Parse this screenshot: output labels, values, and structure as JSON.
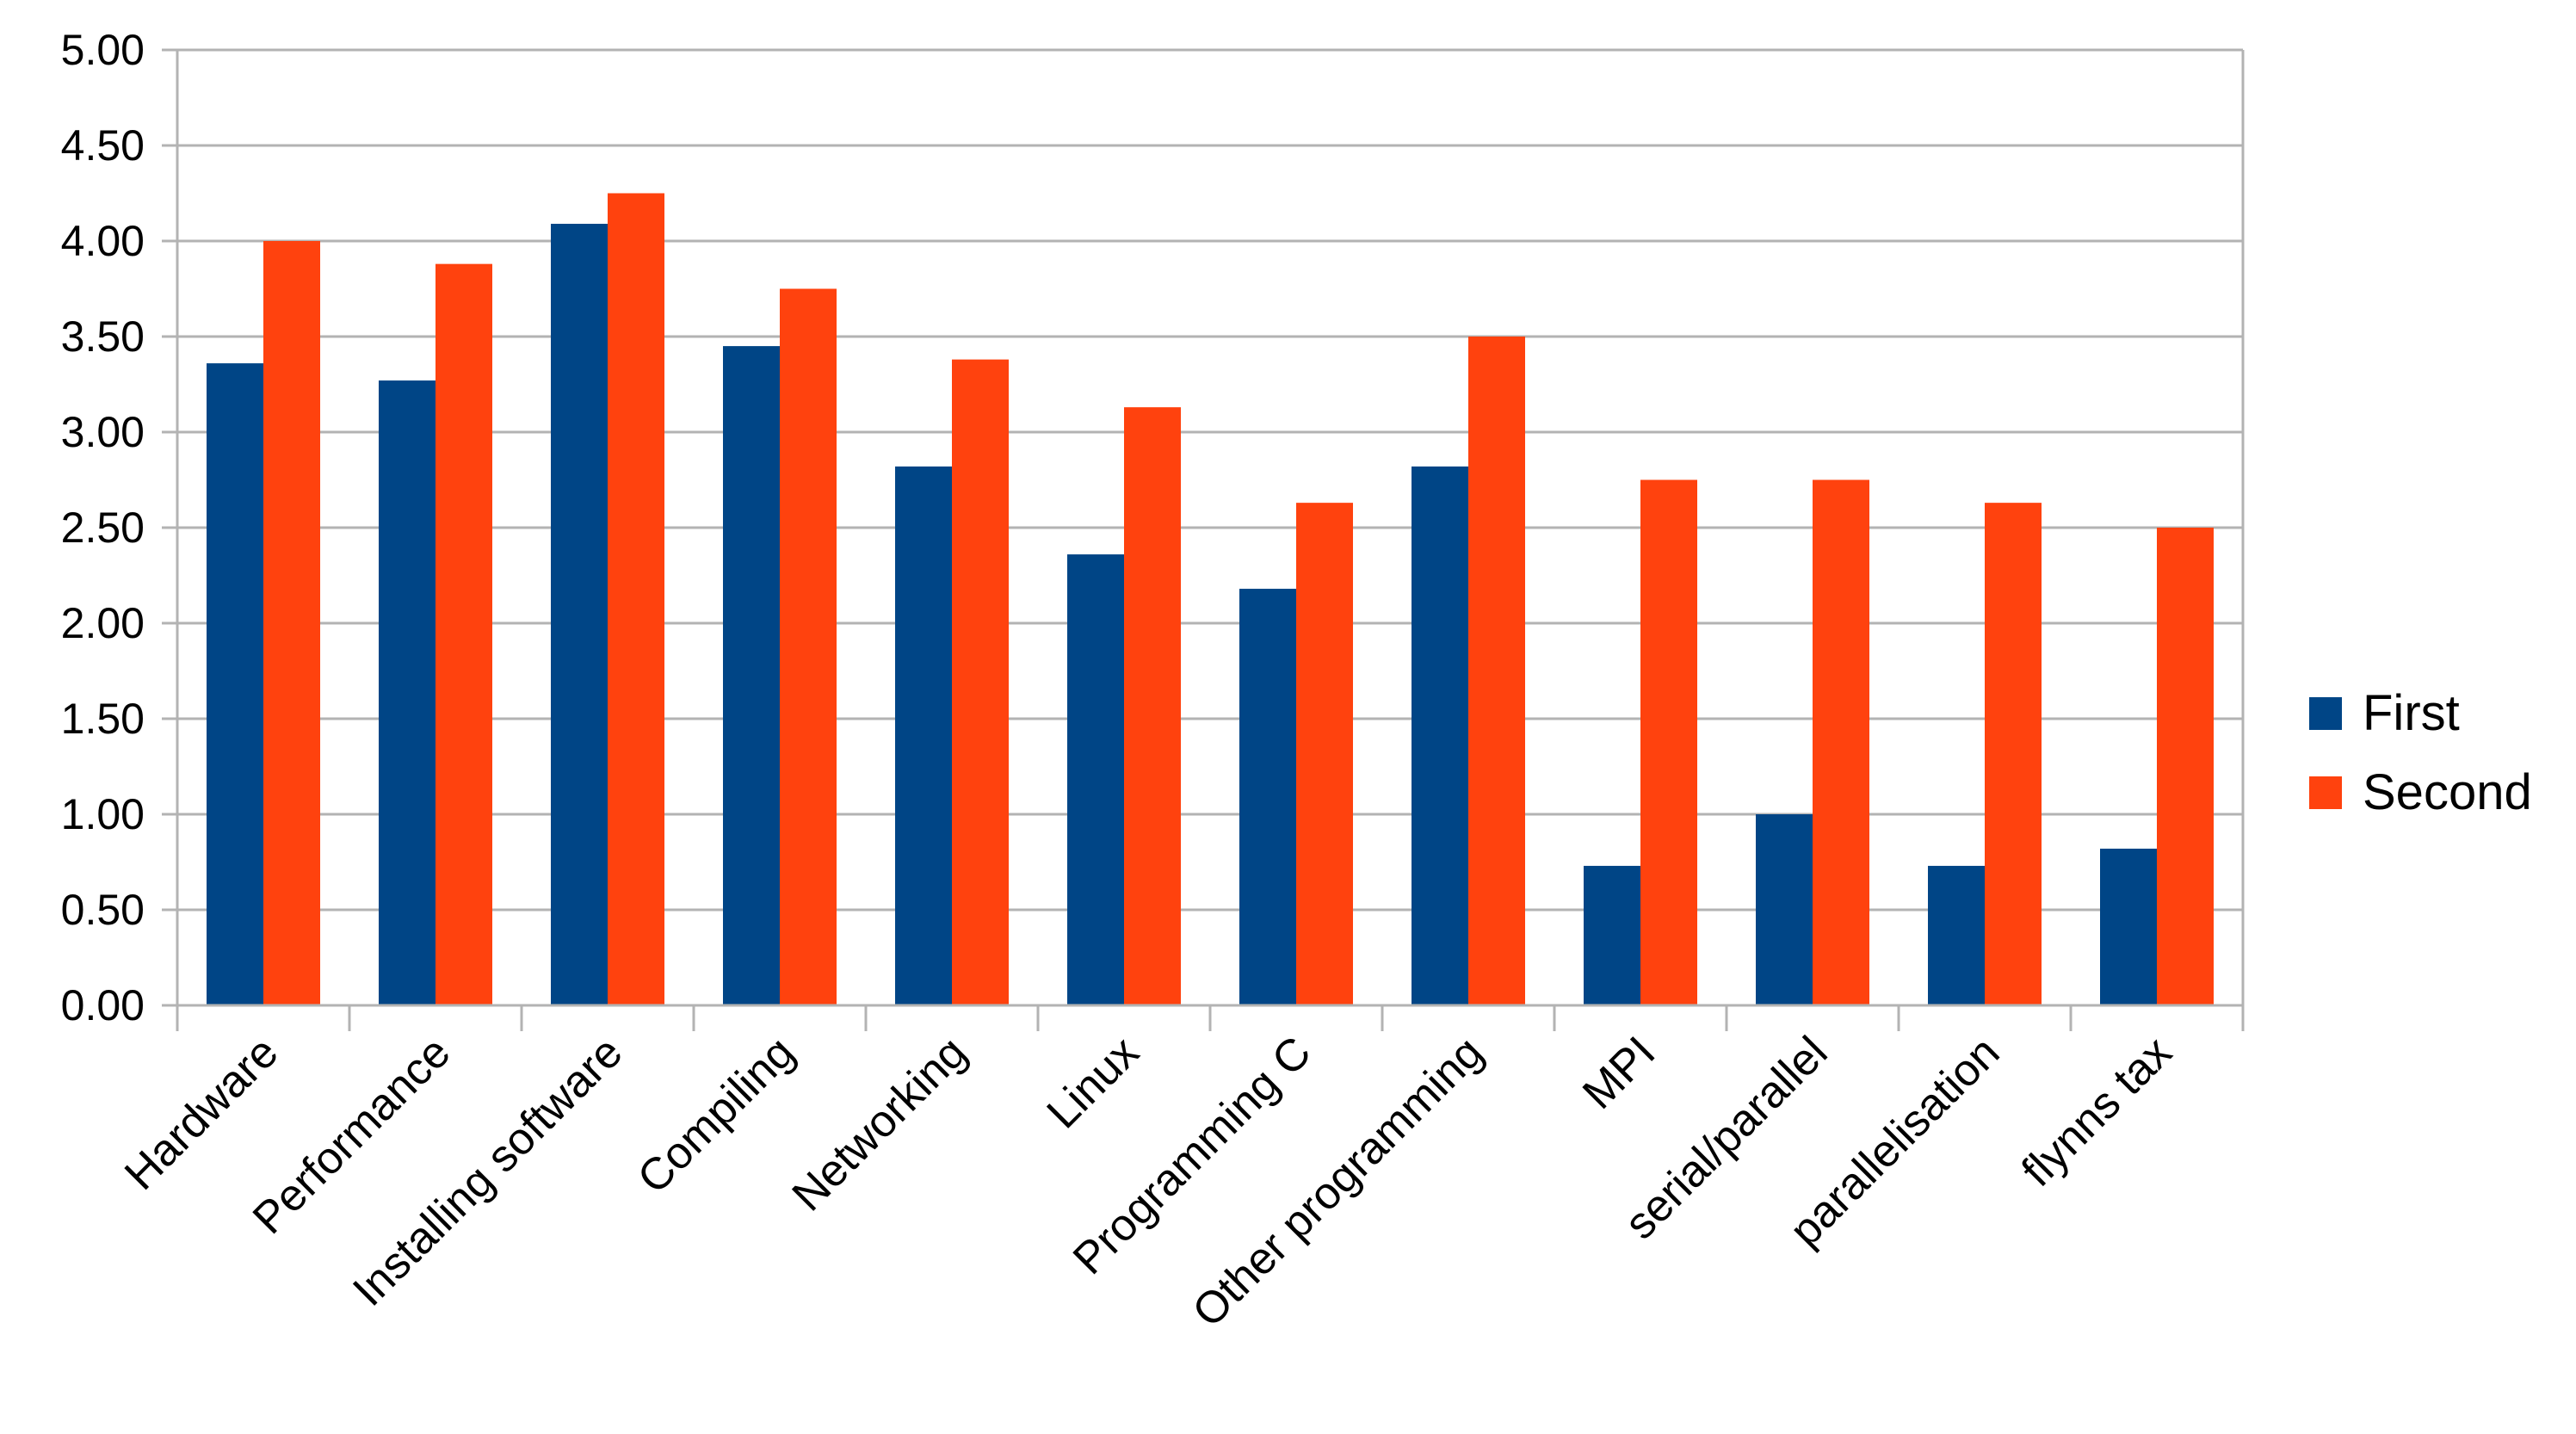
{
  "chart_data": {
    "type": "bar",
    "title": "",
    "xlabel": "",
    "ylabel": "",
    "ylim": [
      0,
      5
    ],
    "ytick_step": 0.5,
    "ytick_decimals": 2,
    "grid": true,
    "legend_position": "right",
    "categories": [
      "Hardware",
      "Performance",
      "Installing software",
      "Compiling",
      "Networking",
      "Linux",
      "Programming C",
      "Other programming",
      "MPI",
      "serial/parallel",
      "parallelisation",
      "flynns tax"
    ],
    "series": [
      {
        "name": "First",
        "color": "#004586",
        "values": [
          3.36,
          3.27,
          4.09,
          3.45,
          2.82,
          2.36,
          2.18,
          2.82,
          0.73,
          1.0,
          0.73,
          0.82
        ]
      },
      {
        "name": "Second",
        "color": "#ff420e",
        "values": [
          4.0,
          3.88,
          4.25,
          3.75,
          3.38,
          3.13,
          2.63,
          3.5,
          2.75,
          2.75,
          2.63,
          2.5
        ]
      }
    ]
  }
}
